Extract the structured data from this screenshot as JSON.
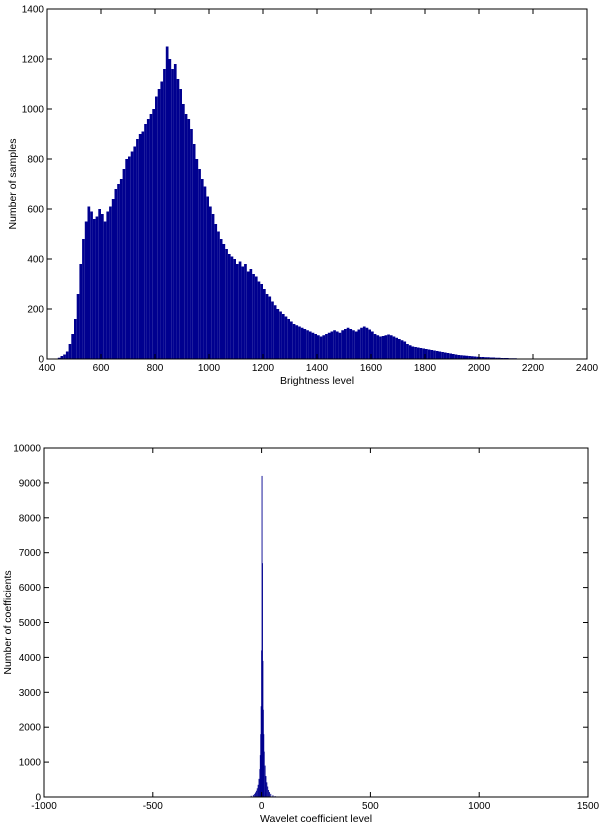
{
  "colors": {
    "bar": "#00008f",
    "axis": "#000000",
    "background": "#ffffff"
  },
  "chart_data": [
    {
      "type": "bar",
      "xlabel": "Brightness level",
      "ylabel": "Number of samples",
      "xlim": [
        400,
        2400
      ],
      "ylim": [
        0,
        1400
      ],
      "xticks": [
        "400",
        "600",
        "800",
        "1000",
        "1200",
        "1400",
        "1600",
        "1800",
        "2000",
        "2200",
        "2400"
      ],
      "yticks": [
        "0",
        "200",
        "400",
        "600",
        "800",
        "1000",
        "1200",
        "1400"
      ],
      "grid": false,
      "bin_width": 10,
      "bins": [
        [
          440,
          5
        ],
        [
          450,
          12
        ],
        [
          460,
          18
        ],
        [
          470,
          30
        ],
        [
          480,
          60
        ],
        [
          490,
          100
        ],
        [
          500,
          160
        ],
        [
          510,
          260
        ],
        [
          520,
          380
        ],
        [
          530,
          480
        ],
        [
          540,
          550
        ],
        [
          550,
          610
        ],
        [
          560,
          590
        ],
        [
          570,
          560
        ],
        [
          580,
          570
        ],
        [
          590,
          600
        ],
        [
          600,
          580
        ],
        [
          610,
          550
        ],
        [
          620,
          590
        ],
        [
          630,
          610
        ],
        [
          640,
          640
        ],
        [
          650,
          680
        ],
        [
          660,
          700
        ],
        [
          670,
          720
        ],
        [
          680,
          760
        ],
        [
          690,
          800
        ],
        [
          700,
          810
        ],
        [
          710,
          830
        ],
        [
          720,
          850
        ],
        [
          730,
          880
        ],
        [
          740,
          900
        ],
        [
          750,
          910
        ],
        [
          760,
          940
        ],
        [
          770,
          960
        ],
        [
          780,
          980
        ],
        [
          790,
          1000
        ],
        [
          800,
          1050
        ],
        [
          810,
          1080
        ],
        [
          820,
          1110
        ],
        [
          830,
          1160
        ],
        [
          840,
          1250
        ],
        [
          850,
          1200
        ],
        [
          860,
          1160
        ],
        [
          870,
          1180
        ],
        [
          880,
          1120
        ],
        [
          890,
          1080
        ],
        [
          900,
          1020
        ],
        [
          910,
          980
        ],
        [
          920,
          960
        ],
        [
          930,
          920
        ],
        [
          940,
          860
        ],
        [
          950,
          800
        ],
        [
          960,
          760
        ],
        [
          970,
          720
        ],
        [
          980,
          690
        ],
        [
          990,
          650
        ],
        [
          1000,
          610
        ],
        [
          1010,
          580
        ],
        [
          1020,
          540
        ],
        [
          1030,
          510
        ],
        [
          1040,
          480
        ],
        [
          1050,
          460
        ],
        [
          1060,
          440
        ],
        [
          1070,
          420
        ],
        [
          1080,
          410
        ],
        [
          1090,
          400
        ],
        [
          1100,
          380
        ],
        [
          1110,
          390
        ],
        [
          1120,
          370
        ],
        [
          1130,
          380
        ],
        [
          1140,
          350
        ],
        [
          1150,
          360
        ],
        [
          1160,
          340
        ],
        [
          1170,
          330
        ],
        [
          1180,
          310
        ],
        [
          1190,
          300
        ],
        [
          1200,
          280
        ],
        [
          1210,
          260
        ],
        [
          1220,
          250
        ],
        [
          1230,
          230
        ],
        [
          1240,
          215
        ],
        [
          1250,
          200
        ],
        [
          1260,
          190
        ],
        [
          1270,
          180
        ],
        [
          1280,
          170
        ],
        [
          1290,
          160
        ],
        [
          1300,
          150
        ],
        [
          1310,
          140
        ],
        [
          1320,
          135
        ],
        [
          1330,
          130
        ],
        [
          1340,
          125
        ],
        [
          1350,
          120
        ],
        [
          1360,
          115
        ],
        [
          1370,
          110
        ],
        [
          1380,
          105
        ],
        [
          1390,
          100
        ],
        [
          1400,
          95
        ],
        [
          1410,
          90
        ],
        [
          1420,
          95
        ],
        [
          1430,
          100
        ],
        [
          1440,
          105
        ],
        [
          1450,
          110
        ],
        [
          1460,
          115
        ],
        [
          1470,
          110
        ],
        [
          1480,
          105
        ],
        [
          1490,
          115
        ],
        [
          1500,
          120
        ],
        [
          1510,
          125
        ],
        [
          1520,
          120
        ],
        [
          1530,
          115
        ],
        [
          1540,
          110
        ],
        [
          1550,
          118
        ],
        [
          1560,
          125
        ],
        [
          1570,
          130
        ],
        [
          1580,
          125
        ],
        [
          1590,
          118
        ],
        [
          1600,
          110
        ],
        [
          1610,
          100
        ],
        [
          1620,
          95
        ],
        [
          1630,
          90
        ],
        [
          1640,
          92
        ],
        [
          1650,
          95
        ],
        [
          1660,
          98
        ],
        [
          1670,
          95
        ],
        [
          1680,
          90
        ],
        [
          1690,
          85
        ],
        [
          1700,
          80
        ],
        [
          1710,
          75
        ],
        [
          1720,
          70
        ],
        [
          1730,
          60
        ],
        [
          1740,
          55
        ],
        [
          1750,
          50
        ],
        [
          1760,
          48
        ],
        [
          1770,
          46
        ],
        [
          1780,
          44
        ],
        [
          1790,
          42
        ],
        [
          1800,
          40
        ],
        [
          1810,
          38
        ],
        [
          1820,
          36
        ],
        [
          1830,
          34
        ],
        [
          1840,
          32
        ],
        [
          1850,
          30
        ],
        [
          1860,
          28
        ],
        [
          1870,
          26
        ],
        [
          1880,
          24
        ],
        [
          1890,
          22
        ],
        [
          1900,
          20
        ],
        [
          1910,
          18
        ],
        [
          1920,
          16
        ],
        [
          1930,
          15
        ],
        [
          1940,
          14
        ],
        [
          1950,
          13
        ],
        [
          1960,
          12
        ],
        [
          1970,
          11
        ],
        [
          1980,
          10
        ],
        [
          1990,
          9
        ],
        [
          2000,
          8
        ],
        [
          2010,
          8
        ],
        [
          2020,
          7
        ],
        [
          2030,
          7
        ],
        [
          2040,
          6
        ],
        [
          2050,
          6
        ],
        [
          2060,
          5
        ],
        [
          2070,
          5
        ],
        [
          2080,
          4
        ],
        [
          2090,
          4
        ],
        [
          2100,
          4
        ],
        [
          2110,
          3
        ],
        [
          2120,
          3
        ],
        [
          2130,
          3
        ],
        [
          2140,
          2
        ],
        [
          2150,
          2
        ],
        [
          2160,
          2
        ],
        [
          2170,
          2
        ],
        [
          2180,
          1
        ],
        [
          2190,
          1
        ],
        [
          2200,
          1
        ],
        [
          2210,
          1
        ]
      ]
    },
    {
      "type": "bar",
      "xlabel": "Wavelet coefficient level",
      "ylabel": "Number of coefficients",
      "xlim": [
        -1000,
        1500
      ],
      "ylim": [
        0,
        10000
      ],
      "xticks": [
        "-1000",
        "-500",
        "0",
        "500",
        "1000",
        "1500"
      ],
      "yticks": [
        "0",
        "1000",
        "2000",
        "3000",
        "4000",
        "5000",
        "6000",
        "7000",
        "8000",
        "9000",
        "10000"
      ],
      "grid": false,
      "bin_width": 2,
      "bins": [
        [
          -70,
          5
        ],
        [
          -60,
          15
        ],
        [
          -50,
          35
        ],
        [
          -40,
          60
        ],
        [
          -34,
          90
        ],
        [
          -30,
          130
        ],
        [
          -26,
          180
        ],
        [
          -22,
          250
        ],
        [
          -18,
          350
        ],
        [
          -14,
          520
        ],
        [
          -10,
          800
        ],
        [
          -8,
          1200
        ],
        [
          -6,
          1800
        ],
        [
          -4,
          2600
        ],
        [
          -2,
          4200
        ],
        [
          0,
          9200
        ],
        [
          2,
          6700
        ],
        [
          4,
          3900
        ],
        [
          6,
          2500
        ],
        [
          8,
          1800
        ],
        [
          10,
          1300
        ],
        [
          14,
          900
        ],
        [
          18,
          600
        ],
        [
          22,
          420
        ],
        [
          26,
          300
        ],
        [
          30,
          200
        ],
        [
          34,
          140
        ],
        [
          40,
          90
        ],
        [
          50,
          50
        ],
        [
          60,
          25
        ],
        [
          70,
          12
        ],
        [
          80,
          6
        ]
      ]
    }
  ]
}
